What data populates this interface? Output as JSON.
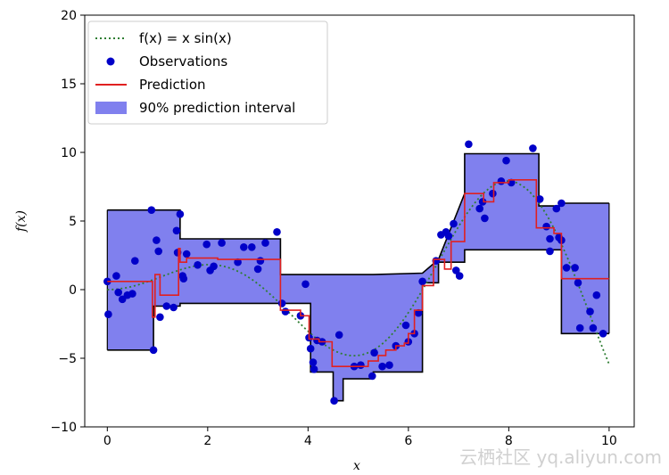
{
  "chart_data": {
    "type": "line",
    "xlabel": "x",
    "ylabel": "f(x)",
    "xlim": [
      -0.45,
      10.5
    ],
    "ylim": [
      -10,
      20
    ],
    "xticks": [
      "0",
      "2",
      "4",
      "6",
      "8",
      "10"
    ],
    "yticks": [
      "−10",
      "−5",
      "0",
      "5",
      "10",
      "15",
      "20"
    ],
    "grid": false,
    "legend_position": "top-left",
    "legend": {
      "curve": "f(x) = x sin(x)",
      "observations": "Observations",
      "prediction": "Prediction",
      "interval": "90% prediction interval"
    },
    "colors": {
      "curve": "#2e7d32",
      "observations": "#0000c8",
      "prediction": "#e02020",
      "interval_fill": "#8080ee",
      "interval_edge": "#000000"
    },
    "interval": {
      "x": [
        0,
        0.92,
        0.92,
        1.45,
        1.45,
        3.45,
        3.45,
        4.05,
        4.05,
        4.5,
        4.5,
        4.7,
        4.7,
        4.75,
        4.75,
        5.3,
        5.3,
        6.28,
        6.28,
        6.6,
        6.6,
        7.12,
        7.12,
        8.6,
        8.6,
        9.05,
        9.05,
        10
      ],
      "upper": [
        5.8,
        5.8,
        5.8,
        5.8,
        3.7,
        3.7,
        1.1,
        1.1,
        1.1,
        1.1,
        1.1,
        1.1,
        1.1,
        1.1,
        1.1,
        1.1,
        1.1,
        1.2,
        1.2,
        2.2,
        2.2,
        7.0,
        9.9,
        9.9,
        6.1,
        6.1,
        6.3,
        6.3
      ],
      "lower": [
        -4.4,
        -4.4,
        -1.2,
        -1.2,
        -1.0,
        -1.0,
        -1.0,
        -1.0,
        -6.0,
        -6.0,
        -8.1,
        -8.1,
        -6.5,
        -6.5,
        -6.5,
        -6.5,
        -6.0,
        -6.0,
        0.5,
        0.5,
        2.0,
        2.0,
        2.9,
        2.9,
        2.9,
        2.9,
        -3.2,
        -3.2
      ]
    },
    "prediction": {
      "x": [
        0,
        0.9,
        0.9,
        0.95,
        0.95,
        1.05,
        1.05,
        1.42,
        1.42,
        1.45,
        1.45,
        1.58,
        1.58,
        2.2,
        2.2,
        3.45,
        3.45,
        3.85,
        3.85,
        4.02,
        4.02,
        4.22,
        4.22,
        4.48,
        4.48,
        5.2,
        5.2,
        5.4,
        5.4,
        5.55,
        5.55,
        5.75,
        5.75,
        5.92,
        5.92,
        6.0,
        6.0,
        6.12,
        6.12,
        6.28,
        6.28,
        6.5,
        6.5,
        6.72,
        6.72,
        6.85,
        6.85,
        7.12,
        7.12,
        7.5,
        7.5,
        7.7,
        7.7,
        8.0,
        8.0,
        8.55,
        8.55,
        8.9,
        8.9,
        9.05,
        9.05,
        10
      ],
      "y": [
        0.6,
        0.6,
        -2.0,
        -2.0,
        1.1,
        1.1,
        -0.4,
        -0.4,
        3.0,
        3.0,
        2.0,
        2.0,
        2.3,
        2.3,
        2.2,
        2.2,
        -1.5,
        -1.5,
        -1.9,
        -1.9,
        -3.6,
        -3.6,
        -3.8,
        -3.8,
        -5.6,
        -5.6,
        -5.2,
        -5.2,
        -4.8,
        -4.8,
        -4.4,
        -4.4,
        -4.1,
        -4.1,
        -3.9,
        -3.9,
        -3.2,
        -3.2,
        -1.5,
        -1.5,
        0.3,
        0.3,
        2.2,
        2.2,
        1.5,
        1.5,
        3.5,
        3.5,
        7.0,
        7.0,
        6.4,
        6.4,
        7.8,
        7.8,
        8.0,
        8.0,
        4.5,
        4.5,
        4.1,
        4.1,
        0.8,
        0.8
      ]
    },
    "observations": [
      [
        0.0,
        0.6
      ],
      [
        0.02,
        -1.8
      ],
      [
        0.18,
        1.0
      ],
      [
        0.22,
        -0.2
      ],
      [
        0.3,
        -0.7
      ],
      [
        0.4,
        -0.4
      ],
      [
        0.5,
        -0.3
      ],
      [
        0.55,
        2.1
      ],
      [
        0.88,
        5.8
      ],
      [
        0.92,
        -4.4
      ],
      [
        0.98,
        3.6
      ],
      [
        1.02,
        2.8
      ],
      [
        1.05,
        -2.0
      ],
      [
        1.18,
        -1.2
      ],
      [
        1.32,
        -1.3
      ],
      [
        1.38,
        4.3
      ],
      [
        1.4,
        2.7
      ],
      [
        1.45,
        5.5
      ],
      [
        1.5,
        1.0
      ],
      [
        1.52,
        0.8
      ],
      [
        1.58,
        2.6
      ],
      [
        1.8,
        1.8
      ],
      [
        1.98,
        3.3
      ],
      [
        2.05,
        1.4
      ],
      [
        2.12,
        1.7
      ],
      [
        2.28,
        3.4
      ],
      [
        2.6,
        2.0
      ],
      [
        2.72,
        3.1
      ],
      [
        2.88,
        3.1
      ],
      [
        3.0,
        1.5
      ],
      [
        3.05,
        2.1
      ],
      [
        3.15,
        3.4
      ],
      [
        3.38,
        4.2
      ],
      [
        3.48,
        -1.0
      ],
      [
        3.55,
        -1.6
      ],
      [
        3.85,
        -1.9
      ],
      [
        3.95,
        0.4
      ],
      [
        4.02,
        -3.5
      ],
      [
        4.05,
        -4.3
      ],
      [
        4.1,
        -5.3
      ],
      [
        4.12,
        -5.8
      ],
      [
        4.18,
        -3.7
      ],
      [
        4.28,
        -3.8
      ],
      [
        4.52,
        -8.1
      ],
      [
        4.62,
        -3.3
      ],
      [
        4.92,
        -5.6
      ],
      [
        5.05,
        -5.5
      ],
      [
        5.28,
        -6.3
      ],
      [
        5.32,
        -4.6
      ],
      [
        5.48,
        -5.6
      ],
      [
        5.62,
        -5.5
      ],
      [
        5.75,
        -4.1
      ],
      [
        5.95,
        -2.6
      ],
      [
        6.0,
        -3.8
      ],
      [
        6.12,
        -3.2
      ],
      [
        6.2,
        -1.7
      ],
      [
        6.28,
        0.6
      ],
      [
        6.55,
        2.1
      ],
      [
        6.65,
        4.0
      ],
      [
        6.75,
        4.2
      ],
      [
        6.8,
        3.9
      ],
      [
        6.9,
        4.8
      ],
      [
        6.95,
        1.4
      ],
      [
        7.02,
        1.0
      ],
      [
        7.2,
        10.6
      ],
      [
        7.42,
        5.9
      ],
      [
        7.48,
        6.4
      ],
      [
        7.52,
        5.2
      ],
      [
        7.68,
        7.0
      ],
      [
        7.85,
        7.9
      ],
      [
        7.95,
        9.4
      ],
      [
        8.05,
        7.8
      ],
      [
        8.48,
        10.3
      ],
      [
        8.62,
        6.6
      ],
      [
        8.75,
        4.6
      ],
      [
        8.82,
        3.7
      ],
      [
        8.82,
        2.8
      ],
      [
        8.95,
        5.9
      ],
      [
        9.0,
        3.8
      ],
      [
        9.05,
        3.6
      ],
      [
        9.05,
        6.3
      ],
      [
        9.15,
        1.6
      ],
      [
        9.32,
        1.6
      ],
      [
        9.38,
        0.5
      ],
      [
        9.42,
        -2.8
      ],
      [
        9.62,
        -1.6
      ],
      [
        9.68,
        -2.8
      ],
      [
        9.75,
        -0.4
      ],
      [
        9.88,
        -3.2
      ]
    ]
  },
  "watermark": "云栖社区 yq.aliyun.com"
}
